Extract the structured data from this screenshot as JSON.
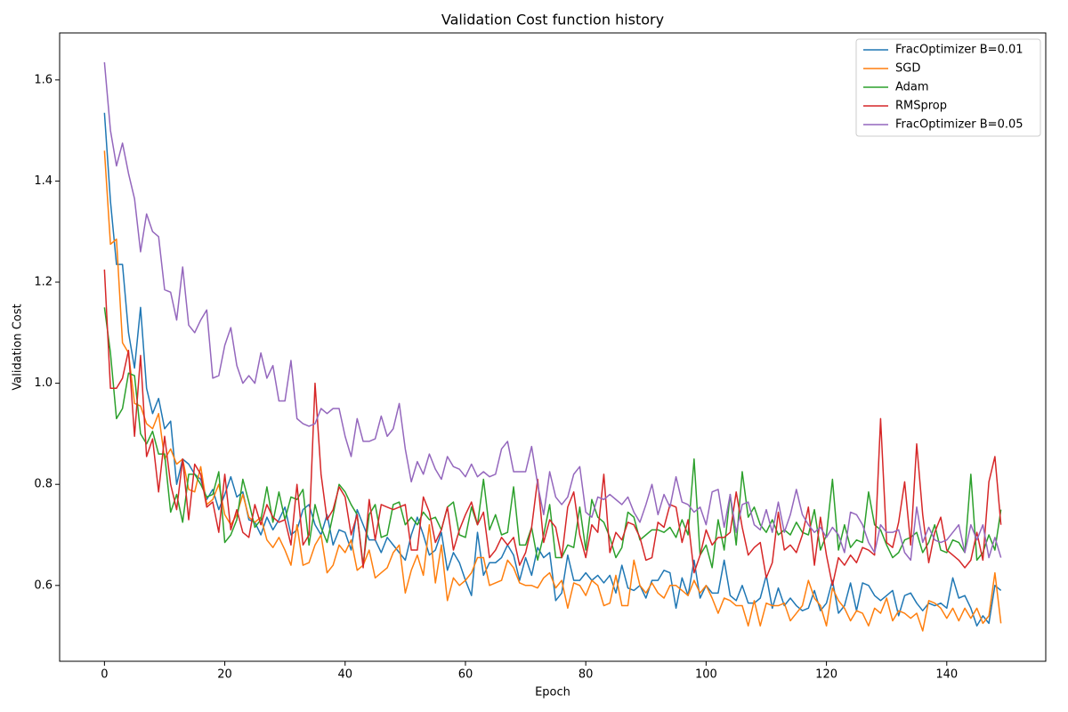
{
  "chart_data": {
    "type": "line",
    "title": "Validation Cost function history",
    "xlabel": "Epoch",
    "ylabel": "Validation Cost",
    "x": [
      0,
      1,
      2,
      3,
      4,
      5,
      6,
      7,
      8,
      9,
      10,
      11,
      12,
      13,
      14,
      15,
      16,
      17,
      18,
      19,
      20,
      21,
      22,
      23,
      24,
      25,
      26,
      27,
      28,
      29,
      30,
      31,
      32,
      33,
      34,
      35,
      36,
      37,
      38,
      39,
      40,
      41,
      42,
      43,
      44,
      45,
      46,
      47,
      48,
      49,
      50,
      51,
      52,
      53,
      54,
      55,
      56,
      57,
      58,
      59,
      60,
      61,
      62,
      63,
      64,
      65,
      66,
      67,
      68,
      69,
      70,
      71,
      72,
      73,
      74,
      75,
      76,
      77,
      78,
      79,
      80,
      81,
      82,
      83,
      84,
      85,
      86,
      87,
      88,
      89,
      90,
      91,
      92,
      93,
      94,
      95,
      96,
      97,
      98,
      99,
      100,
      101,
      102,
      103,
      104,
      105,
      106,
      107,
      108,
      109,
      110,
      111,
      112,
      113,
      114,
      115,
      116,
      117,
      118,
      119,
      120,
      121,
      122,
      123,
      124,
      125,
      126,
      127,
      128,
      129,
      130,
      131,
      132,
      133,
      134,
      135,
      136,
      137,
      138,
      139,
      140,
      141,
      142,
      143,
      144,
      145,
      146,
      147,
      148,
      149
    ],
    "series": [
      {
        "name": "FracOptimizer B=0.01",
        "color": "#1f77b4",
        "values": [
          1.535,
          1.36,
          1.235,
          1.235,
          1.1,
          1.03,
          1.15,
          0.99,
          0.94,
          0.97,
          0.91,
          0.925,
          0.8,
          0.85,
          0.84,
          0.82,
          0.81,
          0.77,
          0.79,
          0.75,
          0.78,
          0.815,
          0.775,
          0.785,
          0.73,
          0.725,
          0.7,
          0.735,
          0.71,
          0.73,
          0.755,
          0.7,
          0.71,
          0.75,
          0.76,
          0.72,
          0.7,
          0.74,
          0.68,
          0.71,
          0.705,
          0.67,
          0.75,
          0.72,
          0.69,
          0.69,
          0.665,
          0.695,
          0.68,
          0.665,
          0.65,
          0.7,
          0.735,
          0.7,
          0.66,
          0.67,
          0.705,
          0.63,
          0.665,
          0.645,
          0.61,
          0.58,
          0.705,
          0.62,
          0.645,
          0.645,
          0.655,
          0.68,
          0.66,
          0.61,
          0.655,
          0.62,
          0.675,
          0.655,
          0.665,
          0.57,
          0.585,
          0.66,
          0.61,
          0.61,
          0.625,
          0.61,
          0.62,
          0.605,
          0.62,
          0.585,
          0.64,
          0.595,
          0.59,
          0.6,
          0.575,
          0.61,
          0.61,
          0.63,
          0.625,
          0.555,
          0.615,
          0.58,
          0.65,
          0.575,
          0.6,
          0.585,
          0.585,
          0.65,
          0.58,
          0.57,
          0.6,
          0.565,
          0.565,
          0.575,
          0.62,
          0.555,
          0.595,
          0.56,
          0.575,
          0.56,
          0.55,
          0.555,
          0.59,
          0.55,
          0.565,
          0.61,
          0.545,
          0.56,
          0.605,
          0.55,
          0.605,
          0.6,
          0.58,
          0.57,
          0.58,
          0.59,
          0.54,
          0.58,
          0.585,
          0.565,
          0.55,
          0.565,
          0.56,
          0.565,
          0.555,
          0.615,
          0.575,
          0.58,
          0.555,
          0.52,
          0.54,
          0.525,
          0.6,
          0.59
        ]
      },
      {
        "name": "SGD",
        "color": "#ff7f0e",
        "values": [
          1.46,
          1.275,
          1.285,
          1.08,
          1.06,
          0.96,
          0.955,
          0.92,
          0.91,
          0.94,
          0.85,
          0.87,
          0.84,
          0.85,
          0.79,
          0.785,
          0.835,
          0.76,
          0.77,
          0.8,
          0.74,
          0.72,
          0.74,
          0.78,
          0.735,
          0.725,
          0.735,
          0.69,
          0.675,
          0.695,
          0.67,
          0.64,
          0.72,
          0.64,
          0.645,
          0.68,
          0.7,
          0.625,
          0.64,
          0.68,
          0.665,
          0.69,
          0.63,
          0.64,
          0.67,
          0.615,
          0.625,
          0.635,
          0.665,
          0.68,
          0.585,
          0.63,
          0.66,
          0.62,
          0.72,
          0.605,
          0.68,
          0.57,
          0.615,
          0.6,
          0.61,
          0.625,
          0.655,
          0.655,
          0.6,
          0.605,
          0.61,
          0.65,
          0.635,
          0.605,
          0.6,
          0.6,
          0.595,
          0.615,
          0.625,
          0.595,
          0.61,
          0.555,
          0.605,
          0.6,
          0.58,
          0.61,
          0.6,
          0.56,
          0.565,
          0.62,
          0.56,
          0.56,
          0.65,
          0.6,
          0.585,
          0.605,
          0.585,
          0.575,
          0.6,
          0.6,
          0.59,
          0.58,
          0.61,
          0.585,
          0.6,
          0.575,
          0.545,
          0.575,
          0.57,
          0.56,
          0.56,
          0.52,
          0.57,
          0.52,
          0.565,
          0.56,
          0.56,
          0.565,
          0.53,
          0.545,
          0.56,
          0.61,
          0.575,
          0.56,
          0.52,
          0.595,
          0.57,
          0.555,
          0.53,
          0.55,
          0.545,
          0.52,
          0.555,
          0.545,
          0.575,
          0.53,
          0.55,
          0.545,
          0.535,
          0.545,
          0.51,
          0.57,
          0.565,
          0.555,
          0.535,
          0.555,
          0.53,
          0.555,
          0.535,
          0.555,
          0.525,
          0.54,
          0.625,
          0.525
        ]
      },
      {
        "name": "Adam",
        "color": "#2ca02c",
        "values": [
          1.15,
          1.06,
          0.93,
          0.95,
          1.02,
          1.015,
          0.9,
          0.88,
          0.905,
          0.86,
          0.86,
          0.745,
          0.78,
          0.725,
          0.82,
          0.82,
          0.8,
          0.775,
          0.78,
          0.825,
          0.685,
          0.7,
          0.73,
          0.81,
          0.765,
          0.715,
          0.73,
          0.795,
          0.725,
          0.785,
          0.73,
          0.775,
          0.77,
          0.79,
          0.68,
          0.76,
          0.715,
          0.685,
          0.74,
          0.8,
          0.785,
          0.76,
          0.74,
          0.64,
          0.74,
          0.76,
          0.695,
          0.7,
          0.76,
          0.765,
          0.72,
          0.735,
          0.72,
          0.745,
          0.73,
          0.735,
          0.71,
          0.755,
          0.765,
          0.7,
          0.695,
          0.755,
          0.72,
          0.81,
          0.71,
          0.74,
          0.7,
          0.705,
          0.795,
          0.68,
          0.68,
          0.715,
          0.65,
          0.7,
          0.76,
          0.655,
          0.655,
          0.68,
          0.675,
          0.755,
          0.67,
          0.77,
          0.735,
          0.725,
          0.695,
          0.655,
          0.675,
          0.745,
          0.735,
          0.69,
          0.7,
          0.71,
          0.71,
          0.705,
          0.715,
          0.695,
          0.73,
          0.7,
          0.85,
          0.66,
          0.68,
          0.635,
          0.73,
          0.67,
          0.78,
          0.68,
          0.825,
          0.735,
          0.755,
          0.72,
          0.705,
          0.73,
          0.7,
          0.71,
          0.7,
          0.725,
          0.705,
          0.7,
          0.75,
          0.67,
          0.7,
          0.81,
          0.67,
          0.72,
          0.675,
          0.69,
          0.685,
          0.785,
          0.72,
          0.71,
          0.68,
          0.655,
          0.665,
          0.69,
          0.695,
          0.705,
          0.665,
          0.685,
          0.72,
          0.67,
          0.665,
          0.69,
          0.685,
          0.665,
          0.82,
          0.65,
          0.665,
          0.7,
          0.67,
          0.75
        ]
      },
      {
        "name": "RMSprop",
        "color": "#d62728",
        "values": [
          1.225,
          0.99,
          0.99,
          1.01,
          1.065,
          0.895,
          1.055,
          0.855,
          0.89,
          0.785,
          0.895,
          0.8,
          0.75,
          0.85,
          0.73,
          0.84,
          0.82,
          0.755,
          0.765,
          0.705,
          0.82,
          0.71,
          0.75,
          0.705,
          0.695,
          0.76,
          0.72,
          0.76,
          0.735,
          0.725,
          0.73,
          0.68,
          0.8,
          0.68,
          0.7,
          1.0,
          0.82,
          0.73,
          0.75,
          0.795,
          0.775,
          0.7,
          0.74,
          0.635,
          0.77,
          0.69,
          0.76,
          0.755,
          0.75,
          0.755,
          0.76,
          0.67,
          0.67,
          0.775,
          0.745,
          0.685,
          0.71,
          0.755,
          0.67,
          0.71,
          0.74,
          0.765,
          0.72,
          0.745,
          0.655,
          0.67,
          0.695,
          0.68,
          0.695,
          0.64,
          0.665,
          0.715,
          0.81,
          0.685,
          0.73,
          0.715,
          0.655,
          0.755,
          0.785,
          0.7,
          0.655,
          0.72,
          0.705,
          0.82,
          0.665,
          0.705,
          0.69,
          0.725,
          0.72,
          0.695,
          0.65,
          0.655,
          0.725,
          0.715,
          0.76,
          0.755,
          0.685,
          0.73,
          0.625,
          0.66,
          0.71,
          0.68,
          0.695,
          0.695,
          0.705,
          0.785,
          0.715,
          0.66,
          0.675,
          0.685,
          0.615,
          0.645,
          0.745,
          0.67,
          0.68,
          0.665,
          0.7,
          0.755,
          0.64,
          0.735,
          0.66,
          0.6,
          0.655,
          0.64,
          0.66,
          0.645,
          0.675,
          0.67,
          0.66,
          0.93,
          0.685,
          0.675,
          0.725,
          0.805,
          0.68,
          0.88,
          0.74,
          0.645,
          0.705,
          0.735,
          0.67,
          0.66,
          0.65,
          0.635,
          0.65,
          0.705,
          0.65,
          0.805,
          0.855,
          0.72
        ]
      },
      {
        "name": "FracOptimizer B=0.05",
        "color": "#9467bd",
        "values": [
          1.635,
          1.5,
          1.43,
          1.475,
          1.415,
          1.365,
          1.26,
          1.335,
          1.3,
          1.29,
          1.185,
          1.18,
          1.125,
          1.23,
          1.115,
          1.1,
          1.125,
          1.145,
          1.01,
          1.015,
          1.075,
          1.11,
          1.035,
          1.0,
          1.015,
          1.0,
          1.06,
          1.01,
          1.035,
          0.965,
          0.965,
          1.045,
          0.93,
          0.92,
          0.915,
          0.92,
          0.95,
          0.94,
          0.95,
          0.95,
          0.895,
          0.855,
          0.93,
          0.885,
          0.885,
          0.89,
          0.935,
          0.895,
          0.91,
          0.96,
          0.87,
          0.805,
          0.845,
          0.82,
          0.86,
          0.83,
          0.81,
          0.855,
          0.835,
          0.83,
          0.815,
          0.84,
          0.815,
          0.825,
          0.815,
          0.82,
          0.87,
          0.885,
          0.825,
          0.825,
          0.825,
          0.875,
          0.8,
          0.74,
          0.825,
          0.775,
          0.76,
          0.775,
          0.82,
          0.835,
          0.745,
          0.735,
          0.775,
          0.77,
          0.78,
          0.77,
          0.76,
          0.775,
          0.745,
          0.725,
          0.76,
          0.8,
          0.74,
          0.78,
          0.755,
          0.815,
          0.765,
          0.76,
          0.745,
          0.755,
          0.72,
          0.785,
          0.79,
          0.715,
          0.78,
          0.705,
          0.76,
          0.765,
          0.72,
          0.71,
          0.75,
          0.705,
          0.765,
          0.705,
          0.74,
          0.79,
          0.74,
          0.72,
          0.705,
          0.715,
          0.695,
          0.715,
          0.7,
          0.665,
          0.745,
          0.74,
          0.72,
          0.685,
          0.665,
          0.72,
          0.705,
          0.705,
          0.71,
          0.665,
          0.65,
          0.755,
          0.685,
          0.715,
          0.69,
          0.685,
          0.69,
          0.705,
          0.72,
          0.665,
          0.72,
          0.69,
          0.72,
          0.655,
          0.695,
          0.655
        ]
      }
    ],
    "xlim": [
      -7.45,
      156.45
    ],
    "xticks": [
      0,
      20,
      40,
      60,
      80,
      100,
      120,
      140
    ],
    "ylim": [
      0.45,
      1.693
    ],
    "yticks": [
      0.6,
      0.8,
      {
        "value": 1,
        "label": "1.0"
      },
      1.2,
      1.4,
      1.6
    ],
    "legend": "upper right"
  }
}
